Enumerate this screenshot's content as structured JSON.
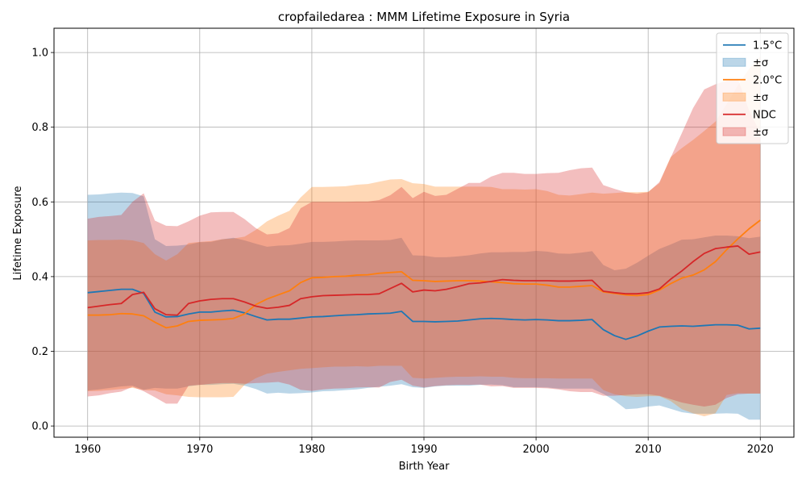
{
  "chart_data": {
    "type": "line",
    "title": "cropfailedarea : MMM Lifetime Exposure in Syria",
    "xlabel": "Birth Year",
    "ylabel": "Lifetime Exposure",
    "xlim": [
      1957,
      2023
    ],
    "ylim": [
      -0.03,
      1.065
    ],
    "xticks": [
      1960,
      1970,
      1980,
      1990,
      2000,
      2010,
      2020
    ],
    "yticks": [
      0.0,
      0.2,
      0.4,
      0.6,
      0.8,
      1.0
    ],
    "xtick_labels": [
      "1960",
      "1970",
      "1980",
      "1990",
      "2000",
      "2010",
      "2020"
    ],
    "ytick_labels": [
      "0.0",
      "0.2",
      "0.4",
      "0.6",
      "0.8",
      "1.0"
    ],
    "grid": true,
    "legend_position": "top-right",
    "x": [
      1960,
      1961,
      1962,
      1963,
      1964,
      1965,
      1966,
      1967,
      1968,
      1969,
      1970,
      1971,
      1972,
      1973,
      1974,
      1975,
      1976,
      1977,
      1978,
      1979,
      1980,
      1981,
      1982,
      1983,
      1984,
      1985,
      1986,
      1987,
      1988,
      1989,
      1990,
      1991,
      1992,
      1993,
      1994,
      1995,
      1996,
      1997,
      1998,
      1999,
      2000,
      2001,
      2002,
      2003,
      2004,
      2005,
      2006,
      2007,
      2008,
      2009,
      2010,
      2011,
      2012,
      2013,
      2014,
      2015,
      2016,
      2017,
      2018,
      2019,
      2020
    ],
    "series": [
      {
        "name": "1.5°C",
        "band_label": "±σ",
        "color": "#1f77b4",
        "band_color": "#1f77b4",
        "values": [
          0.357,
          0.36,
          0.363,
          0.366,
          0.366,
          0.355,
          0.305,
          0.292,
          0.293,
          0.3,
          0.305,
          0.305,
          0.308,
          0.31,
          0.303,
          0.293,
          0.284,
          0.286,
          0.286,
          0.289,
          0.292,
          0.293,
          0.295,
          0.297,
          0.298,
          0.3,
          0.301,
          0.302,
          0.307,
          0.28,
          0.28,
          0.279,
          0.28,
          0.281,
          0.284,
          0.287,
          0.288,
          0.287,
          0.285,
          0.284,
          0.285,
          0.284,
          0.282,
          0.282,
          0.283,
          0.285,
          0.258,
          0.242,
          0.232,
          0.241,
          0.254,
          0.265,
          0.267,
          0.268,
          0.267,
          0.269,
          0.271,
          0.271,
          0.27,
          0.26,
          0.262
        ],
        "upper": [
          0.619,
          0.62,
          0.623,
          0.625,
          0.624,
          0.615,
          0.5,
          0.482,
          0.483,
          0.486,
          0.492,
          0.493,
          0.5,
          0.504,
          0.497,
          0.488,
          0.48,
          0.483,
          0.484,
          0.488,
          0.493,
          0.493,
          0.494,
          0.496,
          0.497,
          0.497,
          0.497,
          0.498,
          0.504,
          0.457,
          0.456,
          0.452,
          0.452,
          0.454,
          0.457,
          0.462,
          0.465,
          0.465,
          0.466,
          0.466,
          0.469,
          0.467,
          0.462,
          0.461,
          0.464,
          0.468,
          0.431,
          0.417,
          0.421,
          0.437,
          0.456,
          0.474,
          0.486,
          0.499,
          0.5,
          0.505,
          0.51,
          0.51,
          0.508,
          0.503,
          0.507
        ],
        "lower": [
          0.095,
          0.098,
          0.102,
          0.106,
          0.108,
          0.097,
          0.102,
          0.1,
          0.1,
          0.106,
          0.11,
          0.11,
          0.112,
          0.113,
          0.108,
          0.099,
          0.087,
          0.089,
          0.087,
          0.088,
          0.09,
          0.093,
          0.094,
          0.096,
          0.098,
          0.102,
          0.105,
          0.108,
          0.112,
          0.104,
          0.102,
          0.106,
          0.108,
          0.108,
          0.108,
          0.11,
          0.111,
          0.109,
          0.104,
          0.104,
          0.104,
          0.103,
          0.1,
          0.1,
          0.1,
          0.1,
          0.086,
          0.068,
          0.045,
          0.047,
          0.052,
          0.055,
          0.046,
          0.037,
          0.033,
          0.033,
          0.033,
          0.034,
          0.033,
          0.017,
          0.017
        ]
      },
      {
        "name": "2.0°C",
        "band_label": "±σ",
        "color": "#ff7f0e",
        "band_color": "#ff7f0e",
        "values": [
          0.297,
          0.297,
          0.298,
          0.301,
          0.3,
          0.295,
          0.278,
          0.263,
          0.268,
          0.28,
          0.283,
          0.284,
          0.285,
          0.288,
          0.3,
          0.325,
          0.34,
          0.351,
          0.362,
          0.384,
          0.397,
          0.398,
          0.4,
          0.401,
          0.404,
          0.405,
          0.409,
          0.411,
          0.413,
          0.39,
          0.389,
          0.387,
          0.388,
          0.389,
          0.389,
          0.388,
          0.386,
          0.384,
          0.381,
          0.38,
          0.38,
          0.377,
          0.372,
          0.372,
          0.374,
          0.376,
          0.359,
          0.355,
          0.351,
          0.349,
          0.352,
          0.364,
          0.381,
          0.396,
          0.404,
          0.418,
          0.44,
          0.472,
          0.501,
          0.528,
          0.551
        ],
        "upper": [
          0.497,
          0.498,
          0.498,
          0.499,
          0.497,
          0.49,
          0.46,
          0.443,
          0.46,
          0.49,
          0.493,
          0.495,
          0.5,
          0.502,
          0.507,
          0.525,
          0.548,
          0.563,
          0.576,
          0.612,
          0.64,
          0.64,
          0.641,
          0.642,
          0.646,
          0.648,
          0.654,
          0.66,
          0.661,
          0.65,
          0.648,
          0.641,
          0.641,
          0.641,
          0.641,
          0.641,
          0.64,
          0.634,
          0.634,
          0.633,
          0.634,
          0.629,
          0.619,
          0.617,
          0.621,
          0.625,
          0.622,
          0.624,
          0.626,
          0.626,
          0.627,
          0.65,
          0.72,
          0.744,
          0.766,
          0.79,
          0.815,
          0.862,
          0.912,
          0.956,
          0.99
        ],
        "lower": [
          0.093,
          0.094,
          0.096,
          0.099,
          0.102,
          0.096,
          0.095,
          0.085,
          0.082,
          0.078,
          0.077,
          0.077,
          0.077,
          0.078,
          0.11,
          0.128,
          0.14,
          0.145,
          0.149,
          0.153,
          0.155,
          0.157,
          0.159,
          0.159,
          0.16,
          0.159,
          0.161,
          0.161,
          0.161,
          0.129,
          0.127,
          0.129,
          0.131,
          0.132,
          0.132,
          0.133,
          0.132,
          0.132,
          0.129,
          0.128,
          0.128,
          0.128,
          0.127,
          0.127,
          0.127,
          0.127,
          0.096,
          0.085,
          0.08,
          0.078,
          0.08,
          0.08,
          0.067,
          0.045,
          0.034,
          0.026,
          0.034,
          0.083,
          0.088,
          0.087,
          0.087
        ]
      },
      {
        "name": "NDC",
        "band_label": "±σ",
        "color": "#d62728",
        "band_color": "#d62728",
        "values": [
          0.317,
          0.321,
          0.325,
          0.328,
          0.352,
          0.358,
          0.314,
          0.298,
          0.297,
          0.328,
          0.335,
          0.339,
          0.341,
          0.341,
          0.332,
          0.321,
          0.315,
          0.318,
          0.323,
          0.341,
          0.346,
          0.349,
          0.35,
          0.351,
          0.352,
          0.352,
          0.354,
          0.368,
          0.382,
          0.359,
          0.364,
          0.362,
          0.366,
          0.373,
          0.381,
          0.383,
          0.387,
          0.392,
          0.39,
          0.389,
          0.389,
          0.389,
          0.388,
          0.388,
          0.389,
          0.39,
          0.361,
          0.357,
          0.354,
          0.354,
          0.357,
          0.367,
          0.393,
          0.415,
          0.44,
          0.462,
          0.475,
          0.479,
          0.482,
          0.46,
          0.466
        ],
        "upper": [
          0.555,
          0.56,
          0.562,
          0.565,
          0.6,
          0.623,
          0.55,
          0.536,
          0.535,
          0.548,
          0.563,
          0.572,
          0.573,
          0.573,
          0.554,
          0.53,
          0.513,
          0.516,
          0.53,
          0.583,
          0.6,
          0.6,
          0.6,
          0.6,
          0.601,
          0.601,
          0.605,
          0.618,
          0.64,
          0.61,
          0.627,
          0.616,
          0.619,
          0.635,
          0.651,
          0.651,
          0.668,
          0.678,
          0.678,
          0.675,
          0.675,
          0.677,
          0.678,
          0.685,
          0.69,
          0.692,
          0.645,
          0.635,
          0.626,
          0.622,
          0.626,
          0.653,
          0.718,
          0.784,
          0.851,
          0.901,
          0.915,
          0.924,
          0.93,
          0.845,
          0.785
        ],
        "lower": [
          0.079,
          0.082,
          0.088,
          0.092,
          0.105,
          0.093,
          0.077,
          0.06,
          0.06,
          0.108,
          0.11,
          0.113,
          0.115,
          0.115,
          0.113,
          0.115,
          0.116,
          0.118,
          0.111,
          0.097,
          0.094,
          0.098,
          0.1,
          0.101,
          0.103,
          0.104,
          0.103,
          0.118,
          0.124,
          0.108,
          0.103,
          0.107,
          0.109,
          0.11,
          0.11,
          0.111,
          0.106,
          0.107,
          0.102,
          0.102,
          0.102,
          0.101,
          0.098,
          0.093,
          0.091,
          0.091,
          0.081,
          0.081,
          0.083,
          0.085,
          0.085,
          0.081,
          0.072,
          0.063,
          0.057,
          0.052,
          0.057,
          0.075,
          0.085,
          0.087,
          0.087
        ]
      }
    ]
  }
}
